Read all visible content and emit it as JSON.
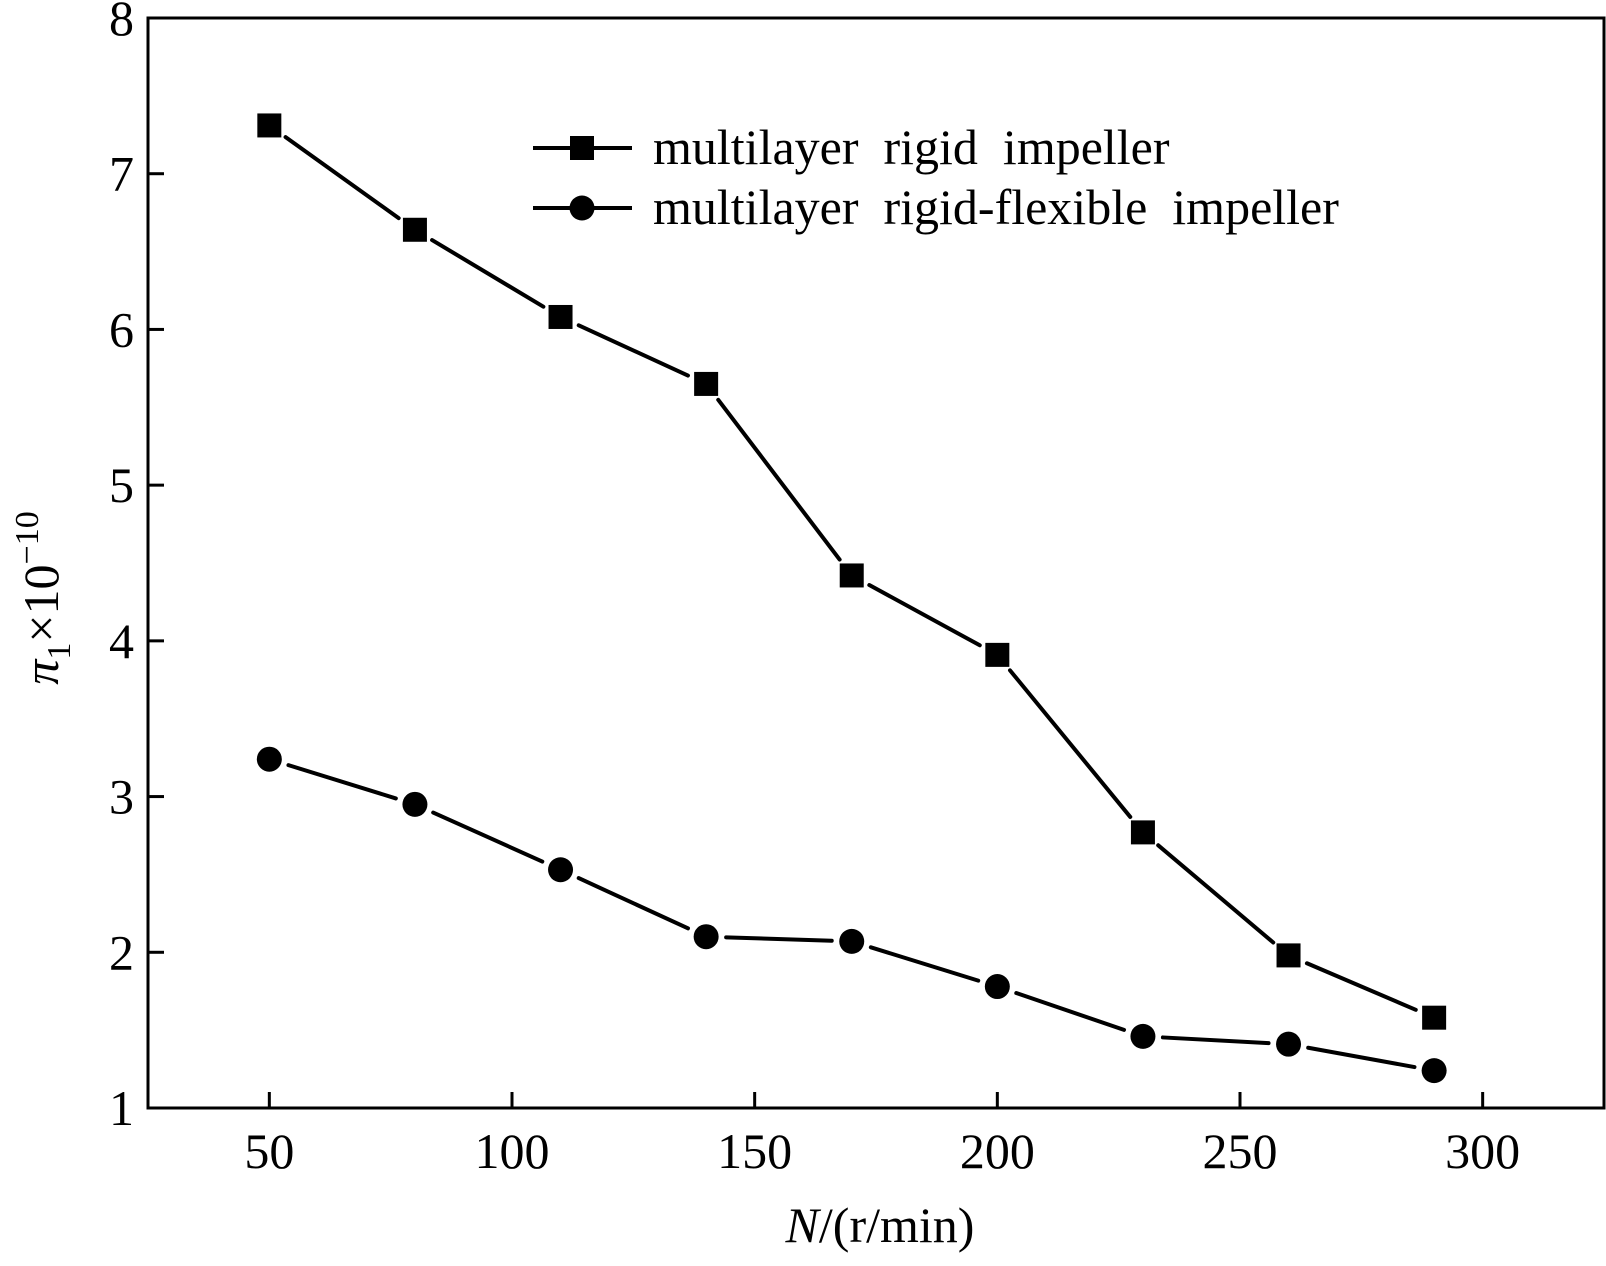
{
  "chart_data": {
    "type": "line",
    "xlabel_var": "N",
    "xlabel_unit": "/(r/min)",
    "ylabel_var": "π",
    "ylabel_sub": "1",
    "ylabel_rest": "×10",
    "ylabel_exp": "−10",
    "xlim": [
      25,
      325
    ],
    "ylim": [
      1,
      8
    ],
    "xticks": [
      50,
      100,
      150,
      200,
      250,
      300
    ],
    "yticks": [
      1,
      2,
      3,
      4,
      5,
      6,
      7,
      8
    ],
    "grid": false,
    "legend_position": "top-right",
    "x": [
      50,
      80,
      110,
      140,
      170,
      200,
      230,
      260,
      290
    ],
    "series": [
      {
        "name": "multilayer  rigid  impeller",
        "marker": "square",
        "values": [
          7.31,
          6.64,
          6.08,
          5.65,
          4.42,
          3.91,
          2.77,
          1.98,
          1.58
        ]
      },
      {
        "name": "multilayer  rigid-flexible  impeller",
        "marker": "circle",
        "values": [
          3.24,
          2.95,
          2.53,
          2.1,
          2.07,
          1.78,
          1.46,
          1.41,
          1.24
        ]
      }
    ]
  }
}
